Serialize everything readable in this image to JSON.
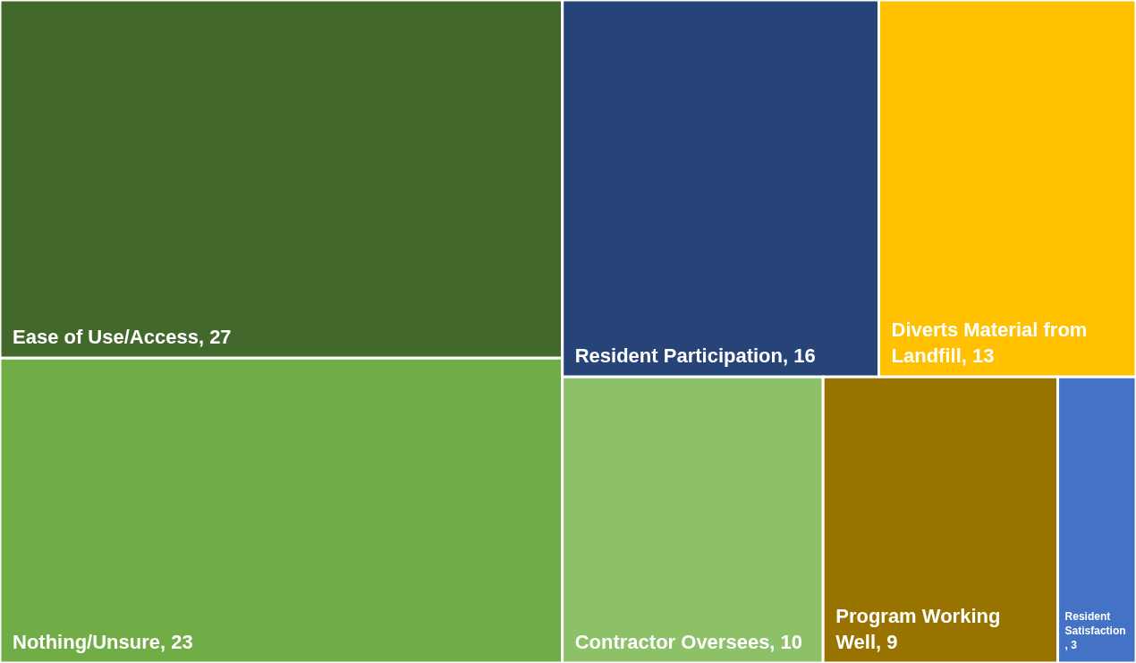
{
  "chart_data": {
    "type": "other",
    "categories": [
      "Ease of Use/Access",
      "Nothing/Unsure",
      "Resident Participation",
      "Diverts Material from Landfill",
      "Contractor Oversees",
      "Program Working Well",
      "Resident Satisfaction"
    ],
    "values": [
      27,
      23,
      16,
      13,
      10,
      9,
      3
    ],
    "value_labels": [
      ", 27",
      ", 23",
      ", 16",
      ", 13",
      ", 10",
      ", 9",
      ", 3"
    ],
    "colors": [
      "#43682b",
      "#70ad47",
      "#264478",
      "#ffc000",
      "#8cc168",
      "#997300",
      "#4472c4"
    ]
  }
}
